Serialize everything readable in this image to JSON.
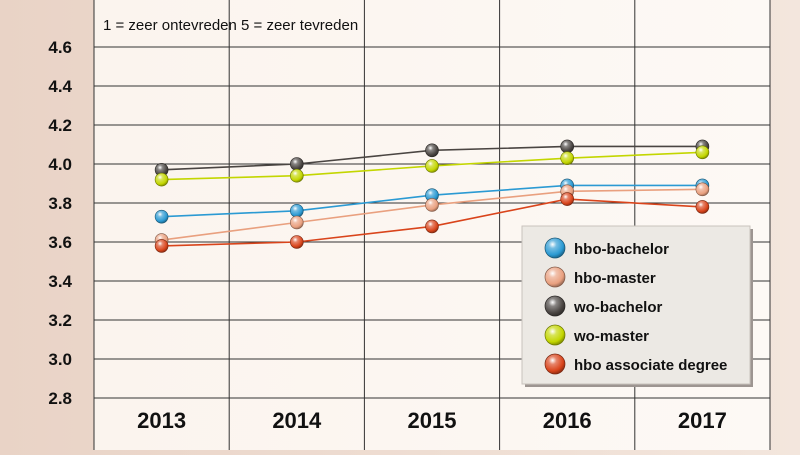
{
  "chart_data": {
    "type": "line",
    "subtitle": "1 = zeer ontevreden 5 = zeer tevreden",
    "categories": [
      "2013",
      "2014",
      "2015",
      "2016",
      "2017"
    ],
    "ylim": [
      2.8,
      4.6
    ],
    "yticks": [
      "2.8",
      "3.0",
      "3.2",
      "3.4",
      "3.6",
      "3.8",
      "4.0",
      "4.2",
      "4.4",
      "4.6"
    ],
    "grid": true,
    "legend_position": "bottom-right",
    "series": [
      {
        "name": "hbo-bachelor",
        "color": "#2b9ad3",
        "values": [
          3.73,
          3.76,
          3.84,
          3.89,
          3.89
        ]
      },
      {
        "name": "hbo-master",
        "color": "#e9a07f",
        "values": [
          3.61,
          3.7,
          3.79,
          3.86,
          3.87
        ]
      },
      {
        "name": "wo-bachelor",
        "color": "#4a4542",
        "values": [
          3.97,
          4.0,
          4.07,
          4.09,
          4.09
        ]
      },
      {
        "name": "wo-master",
        "color": "#c3d600",
        "values": [
          3.92,
          3.94,
          3.99,
          4.03,
          4.06
        ]
      },
      {
        "name": "hbo associate degree",
        "color": "#d9441b",
        "values": [
          3.58,
          3.6,
          3.68,
          3.82,
          3.78
        ]
      }
    ]
  }
}
